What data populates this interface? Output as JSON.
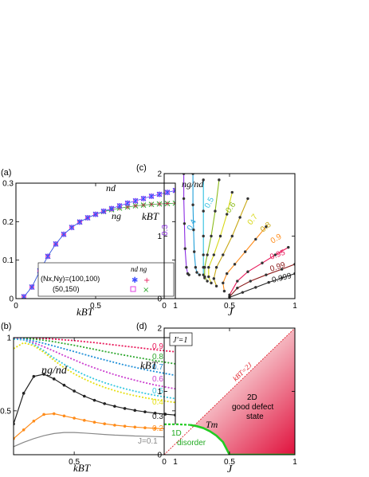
{
  "chart_data": [
    {
      "panel": "(a)",
      "type": "scatter",
      "xlabel": "kBT",
      "ylabel": "",
      "xlim": [
        0,
        1
      ],
      "ylim": [
        0,
        0.3
      ],
      "xticks": [
        "0",
        "0.5",
        "1"
      ],
      "yticks": [
        "0",
        "0.1",
        "0.2",
        "0.3"
      ],
      "curve_labels": [
        "nd",
        "ng"
      ],
      "legend": {
        "header": "nd  ng",
        "rows": [
          "(Nx,Ny)=(100,100)",
          "(50,150)"
        ],
        "placement": "bottom-right"
      },
      "series": [
        {
          "name": "nd (100,100)",
          "color": "#3f4fff",
          "x": [
            0.05,
            0.1,
            0.15,
            0.2,
            0.25,
            0.3,
            0.35,
            0.4,
            0.45,
            0.5,
            0.55,
            0.6,
            0.65,
            0.7,
            0.75,
            0.8,
            0.85,
            0.9,
            0.95,
            1.0
          ],
          "y": [
            0.005,
            0.03,
            0.072,
            0.11,
            0.142,
            0.167,
            0.185,
            0.199,
            0.21,
            0.219,
            0.227,
            0.234,
            0.241,
            0.248,
            0.254,
            0.26,
            0.266,
            0.271,
            0.276,
            0.281
          ]
        },
        {
          "name": "ng (100,100)",
          "color": "#2fa82f",
          "x": [
            0.05,
            0.1,
            0.15,
            0.2,
            0.25,
            0.3,
            0.35,
            0.4,
            0.45,
            0.5,
            0.55,
            0.6,
            0.65,
            0.7,
            0.75,
            0.8,
            0.85,
            0.9,
            0.95,
            1.0
          ],
          "y": [
            0.005,
            0.03,
            0.072,
            0.11,
            0.142,
            0.167,
            0.185,
            0.199,
            0.21,
            0.219,
            0.226,
            0.231,
            0.235,
            0.238,
            0.241,
            0.243,
            0.245,
            0.246,
            0.247,
            0.248
          ]
        }
      ]
    },
    {
      "panel": "(b)",
      "type": "line",
      "xlabel": "kBT",
      "ylabel": "",
      "xlim": [
        0.2,
        1
      ],
      "ylim": [
        0.2,
        1
      ],
      "xticks": [
        "0.5",
        "1"
      ],
      "yticks": [
        "0.5",
        "1"
      ],
      "curve_label": "ng/nd",
      "series": [
        {
          "name": "0.9",
          "color": "#e8185a",
          "y": [
            1,
            0.999,
            0.997,
            0.994,
            0.99,
            0.985,
            0.98,
            0.973,
            0.966,
            0.958,
            0.95,
            0.942,
            0.934,
            0.926,
            0.918,
            0.91,
            0.903
          ]
        },
        {
          "name": "0.8",
          "color": "#2fa82f",
          "y": [
            1,
            0.996,
            0.99,
            0.982,
            0.972,
            0.96,
            0.948,
            0.934,
            0.92,
            0.906,
            0.893,
            0.88,
            0.867,
            0.855,
            0.843,
            0.832,
            0.821
          ]
        },
        {
          "name": "0.7",
          "color": "#1f8fd8",
          "y": [
            1,
            0.99,
            0.977,
            0.961,
            0.943,
            0.924,
            0.905,
            0.885,
            0.866,
            0.848,
            0.83,
            0.813,
            0.797,
            0.782,
            0.768,
            0.755,
            0.742
          ]
        },
        {
          "name": "0.6",
          "color": "#cc3fd0",
          "y": [
            1,
            0.985,
            0.965,
            0.938,
            0.908,
            0.877,
            0.848,
            0.819,
            0.793,
            0.769,
            0.747,
            0.727,
            0.709,
            0.692,
            0.677,
            0.663,
            0.65
          ]
        },
        {
          "name": "0.5",
          "color": "#37c8e0",
          "y": [
            0.99,
            0.985,
            0.955,
            0.91,
            0.86,
            0.818,
            0.78,
            0.746,
            0.717,
            0.692,
            0.67,
            0.651,
            0.634,
            0.619,
            0.606,
            0.594,
            0.583
          ]
        },
        {
          "name": "0.4",
          "color": "#e6e014",
          "y": [
            0.925,
            0.965,
            0.945,
            0.9,
            0.845,
            0.795,
            0.753,
            0.717,
            0.686,
            0.66,
            0.638,
            0.619,
            0.603,
            0.589,
            0.577,
            0.566,
            0.557
          ]
        },
        {
          "name": "0.3",
          "color": "#222222",
          "y": [
            0.41,
            0.62,
            0.735,
            0.75,
            0.718,
            0.675,
            0.635,
            0.6,
            0.572,
            0.549,
            0.531,
            0.516,
            0.503,
            0.493,
            0.484,
            0.477,
            0.471
          ]
        },
        {
          "name": "0.2",
          "color": "#ff8c1a",
          "y": [
            0.31,
            0.37,
            0.43,
            0.475,
            0.48,
            0.465,
            0.45,
            0.435,
            0.422,
            0.411,
            0.402,
            0.395,
            0.389,
            0.384,
            0.38,
            0.377,
            0.374
          ]
        },
        {
          "name": "J=0.1",
          "color": "#888888",
          "y": [
            0.255,
            0.285,
            0.31,
            0.33,
            0.345,
            0.352,
            0.352,
            0.348,
            0.343,
            0.338,
            0.334,
            0.331,
            0.328,
            0.326,
            0.324,
            0.322,
            0.321
          ]
        }
      ],
      "x": [
        0.2,
        0.25,
        0.3,
        0.35,
        0.4,
        0.45,
        0.5,
        0.55,
        0.6,
        0.65,
        0.7,
        0.75,
        0.8,
        0.85,
        0.9,
        0.95,
        1.0
      ]
    },
    {
      "panel": "(c)",
      "type": "line",
      "xlabel": "J",
      "ylabel": "kBT",
      "xlim": [
        0,
        1
      ],
      "ylim": [
        0,
        2
      ],
      "xticks": [
        "0",
        "0.5",
        "1"
      ],
      "yticks": [
        "0",
        "1",
        "2"
      ],
      "curve_label": "ng/nd",
      "contours": [
        {
          "label": "0.3",
          "color": "#8a2be2",
          "J": [
            0.15,
            0.15,
            0.155,
            0.16,
            0.17,
            0.18,
            0.19
          ],
          "T": [
            2.0,
            1.6,
            1.2,
            0.8,
            0.5,
            0.4,
            0.38
          ]
        },
        {
          "label": "0.4",
          "color": "#1f9fd8",
          "J": [
            0.22,
            0.22,
            0.225,
            0.23,
            0.24,
            0.25,
            0.27
          ],
          "T": [
            2.0,
            1.5,
            1.1,
            0.75,
            0.5,
            0.42,
            0.38
          ]
        },
        {
          "label": "0.5",
          "color": "#2fbfe0",
          "J": [
            0.3,
            0.3,
            0.3,
            0.3,
            0.3,
            0.3,
            0.31
          ],
          "T": [
            1.9,
            1.4,
            1.0,
            0.7,
            0.5,
            0.38,
            0.33
          ]
        },
        {
          "label": "0.6",
          "color": "#8cbc1c",
          "J": [
            0.42,
            0.39,
            0.36,
            0.33,
            0.31,
            0.31,
            0.33
          ],
          "T": [
            1.9,
            1.4,
            1.0,
            0.7,
            0.5,
            0.35,
            0.28
          ]
        },
        {
          "label": "0.7",
          "color": "#d8d814",
          "J": [
            0.52,
            0.48,
            0.43,
            0.38,
            0.34,
            0.34,
            0.36
          ],
          "T": [
            1.7,
            1.35,
            1.0,
            0.7,
            0.5,
            0.35,
            0.25
          ]
        },
        {
          "label": "0.8",
          "color": "#c8a814",
          "J": [
            0.64,
            0.58,
            0.52,
            0.45,
            0.4,
            0.38,
            0.4
          ],
          "T": [
            1.6,
            1.3,
            1.0,
            0.7,
            0.5,
            0.32,
            0.2
          ]
        },
        {
          "label": "0.9",
          "color": "#ff8c1a",
          "J": [
            0.78,
            0.7,
            0.62,
            0.54,
            0.48,
            0.45,
            0.46
          ],
          "T": [
            1.15,
            0.95,
            0.75,
            0.55,
            0.4,
            0.25,
            0.12
          ]
        },
        {
          "label": "0.95",
          "color": "#e8185a",
          "J": [
            0.95,
            0.85,
            0.75,
            0.64,
            0.56,
            0.5
          ],
          "T": [
            0.82,
            0.7,
            0.57,
            0.43,
            0.28,
            0.06
          ]
        },
        {
          "label": "0.99",
          "color": "#8b1a1a",
          "J": [
            1.0,
            0.9,
            0.78,
            0.66,
            0.56,
            0.5
          ],
          "T": [
            0.55,
            0.47,
            0.38,
            0.28,
            0.17,
            0.03
          ]
        },
        {
          "label": "0.999",
          "color": "#222222",
          "J": [
            1.0,
            0.9,
            0.8,
            0.7,
            0.6,
            0.5
          ],
          "T": [
            0.4,
            0.33,
            0.26,
            0.18,
            0.1,
            0.02
          ]
        }
      ]
    },
    {
      "panel": "(d)",
      "type": "area",
      "xlabel": "J",
      "ylabel": "kBT",
      "xlim": [
        0,
        1
      ],
      "ylim": [
        0,
        2
      ],
      "xticks": [
        "0",
        "0.5",
        "1"
      ],
      "yticks": [
        "0",
        "1",
        "2"
      ],
      "box_label": "J'=1",
      "line_label": "kBT=2J",
      "tm_label": "Tm",
      "region_labels": {
        "disorder_1": "1D",
        "disorder_2": "disorder",
        "ordered_1": "2D",
        "ordered_2": "good defect",
        "ordered_3": "state"
      },
      "tm_curve": {
        "J": [
          0.0,
          0.1,
          0.2,
          0.25,
          0.3,
          0.35,
          0.4,
          0.45,
          0.5,
          0.6,
          0.8,
          1.0
        ],
        "T": [
          0.48,
          0.48,
          0.47,
          0.45,
          0.42,
          0.37,
          0.3,
          0.2,
          0.0,
          0.0,
          0.0,
          0.0
        ]
      },
      "colors": {
        "tm": "#22cc22",
        "diag": "#e0202a",
        "heat_low": "#ffffff",
        "heat_high": "#e0103c"
      }
    }
  ],
  "panel_labels": {
    "a": "(a)",
    "b": "(b)",
    "c": "(c)",
    "d": "(d)"
  }
}
